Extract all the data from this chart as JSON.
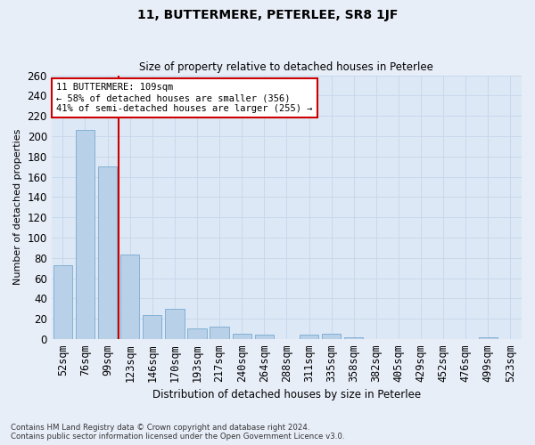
{
  "title": "11, BUTTERMERE, PETERLEE, SR8 1JF",
  "subtitle": "Size of property relative to detached houses in Peterlee",
  "xlabel": "Distribution of detached houses by size in Peterlee",
  "ylabel": "Number of detached properties",
  "footer_line1": "Contains HM Land Registry data © Crown copyright and database right 2024.",
  "footer_line2": "Contains public sector information licensed under the Open Government Licence v3.0.",
  "categories": [
    "52sqm",
    "76sqm",
    "99sqm",
    "123sqm",
    "146sqm",
    "170sqm",
    "193sqm",
    "217sqm",
    "240sqm",
    "264sqm",
    "288sqm",
    "311sqm",
    "335sqm",
    "358sqm",
    "382sqm",
    "405sqm",
    "429sqm",
    "452sqm",
    "476sqm",
    "499sqm",
    "523sqm"
  ],
  "values": [
    73,
    206,
    170,
    83,
    24,
    30,
    11,
    12,
    5,
    4,
    0,
    4,
    5,
    2,
    0,
    0,
    0,
    0,
    0,
    2,
    0
  ],
  "bar_color": "#b8d0e8",
  "bar_edge_color": "#7aaad0",
  "grid_color": "#c8d8ec",
  "property_line_color": "#cc0000",
  "annotation_text": "11 BUTTERMERE: 109sqm\n← 58% of detached houses are smaller (356)\n41% of semi-detached houses are larger (255) →",
  "annotation_box_color": "#ffffff",
  "annotation_box_edge": "#cc0000",
  "ylim": [
    0,
    260
  ],
  "yticks": [
    0,
    20,
    40,
    60,
    80,
    100,
    120,
    140,
    160,
    180,
    200,
    220,
    240,
    260
  ],
  "background_color": "#e8eef8",
  "plot_background": "#dce8f5",
  "title_fontsize": 10,
  "subtitle_fontsize": 8.5
}
